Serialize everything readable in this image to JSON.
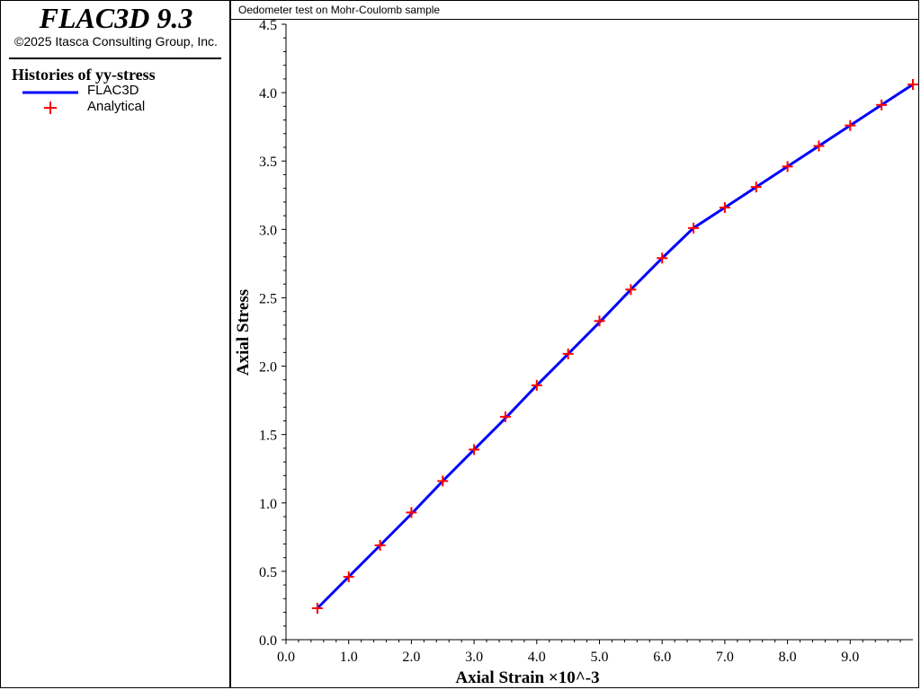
{
  "sidebar": {
    "app_title": "FLAC3D 9.3",
    "copyright": "©2025 Itasca Consulting Group, Inc.",
    "legend_title": "Histories of yy-stress",
    "legend": [
      {
        "label": "FLAC3D",
        "symbol": "line",
        "color": "#0000ff"
      },
      {
        "label": "Analytical",
        "symbol": "plus",
        "color": "#ff0000"
      }
    ]
  },
  "plot": {
    "title": "Oedometer test on Mohr-Coulomb sample"
  },
  "chart_data": {
    "type": "line",
    "title": "Oedometer test on Mohr-Coulomb sample",
    "xlabel": "Axial Strain ×10^-3",
    "ylabel": "Axial Stress",
    "xlim": [
      0,
      10
    ],
    "ylim": [
      0,
      4.5
    ],
    "xticks": [
      "0.0",
      "1.0",
      "2.0",
      "3.0",
      "4.0",
      "5.0",
      "6.0",
      "7.0",
      "8.0",
      "9.0"
    ],
    "yticks": [
      "0.0",
      "0.5",
      "1.0",
      "1.5",
      "2.0",
      "2.5",
      "3.0",
      "3.5",
      "4.0",
      "4.5"
    ],
    "grid": false,
    "series": [
      {
        "name": "FLAC3D",
        "style": "line",
        "color": "#0000ff",
        "x": [
          0.5,
          1.0,
          1.5,
          2.0,
          2.5,
          3.0,
          3.5,
          4.0,
          4.5,
          5.0,
          5.5,
          6.0,
          6.5,
          7.0,
          7.5,
          8.0,
          8.5,
          9.0,
          9.5,
          10.0
        ],
        "y": [
          0.23,
          0.46,
          0.69,
          0.92,
          1.16,
          1.39,
          1.62,
          1.86,
          2.09,
          2.32,
          2.56,
          2.79,
          3.01,
          3.16,
          3.31,
          3.46,
          3.61,
          3.76,
          3.91,
          4.06
        ]
      },
      {
        "name": "Analytical",
        "style": "plus",
        "color": "#ff0000",
        "x": [
          0.5,
          1.0,
          1.5,
          2.0,
          2.5,
          3.0,
          3.5,
          4.0,
          4.5,
          5.0,
          5.5,
          6.0,
          6.5,
          7.0,
          7.5,
          8.0,
          8.5,
          9.0,
          9.5,
          10.0
        ],
        "y": [
          0.23,
          0.46,
          0.69,
          0.93,
          1.16,
          1.39,
          1.63,
          1.86,
          2.09,
          2.33,
          2.56,
          2.79,
          3.01,
          3.16,
          3.31,
          3.46,
          3.61,
          3.76,
          3.91,
          4.06
        ]
      }
    ]
  }
}
